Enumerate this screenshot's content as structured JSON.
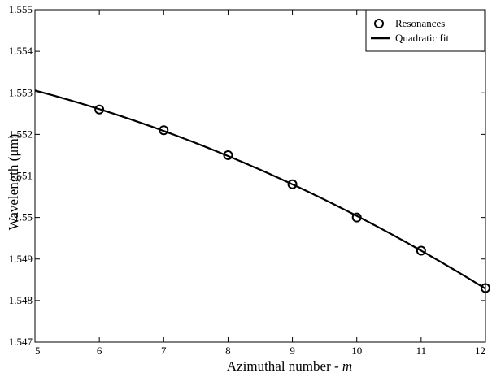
{
  "chart_data": {
    "type": "scatter",
    "xlabel": "Azimuthal number - ",
    "xlabel_var": "m",
    "ylabel": "Wavelength (μm)",
    "xlim": [
      5,
      12
    ],
    "ylim": [
      1.547,
      1.555
    ],
    "x_ticks": [
      "5",
      "6",
      "7",
      "8",
      "9",
      "10",
      "11",
      "12"
    ],
    "y_ticks": [
      "1.547",
      "1.548",
      "1.549",
      "1.55",
      "1.551",
      "1.552",
      "1.553",
      "1.554",
      "1.555"
    ],
    "grid": false,
    "legend_position": "top-right",
    "series": [
      {
        "name": "Resonances",
        "marker": "open-circle",
        "x": [
          6,
          7,
          8,
          9,
          10,
          11,
          12
        ],
        "y": [
          1.5526,
          1.5521,
          1.5515,
          1.5508,
          1.55,
          1.5492,
          1.5483
        ]
      },
      {
        "name": "Quadratic fit",
        "style": "solid-line",
        "x": [
          5,
          6,
          7,
          8,
          9,
          10,
          11,
          12
        ],
        "y": [
          1.55305,
          1.5526,
          1.5521,
          1.5515,
          1.5508,
          1.55,
          1.5492,
          1.5483
        ]
      }
    ]
  }
}
